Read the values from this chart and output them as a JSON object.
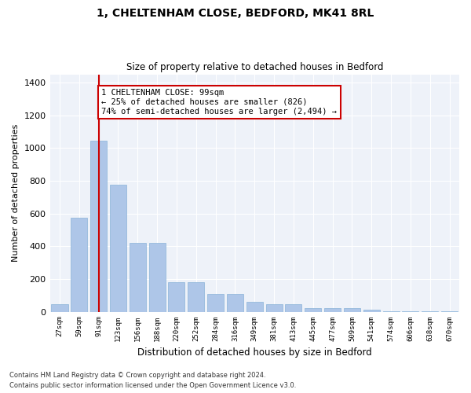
{
  "title1": "1, CHELTENHAM CLOSE, BEDFORD, MK41 8RL",
  "title2": "Size of property relative to detached houses in Bedford",
  "xlabel": "Distribution of detached houses by size in Bedford",
  "ylabel": "Number of detached properties",
  "categories": [
    "27sqm",
    "59sqm",
    "91sqm",
    "123sqm",
    "156sqm",
    "188sqm",
    "220sqm",
    "252sqm",
    "284sqm",
    "316sqm",
    "349sqm",
    "381sqm",
    "413sqm",
    "445sqm",
    "477sqm",
    "509sqm",
    "541sqm",
    "574sqm",
    "606sqm",
    "638sqm",
    "670sqm"
  ],
  "values": [
    45,
    575,
    1045,
    775,
    420,
    420,
    180,
    180,
    110,
    110,
    60,
    45,
    45,
    20,
    20,
    20,
    13,
    5,
    5,
    2,
    2
  ],
  "bar_color": "#aec6e8",
  "bar_edge_color": "#8ab4d8",
  "vline_x_index": 2,
  "vline_color": "#cc0000",
  "annotation_text": "1 CHELTENHAM CLOSE: 99sqm\n← 25% of detached houses are smaller (826)\n74% of semi-detached houses are larger (2,494) →",
  "annotation_box_color": "#ffffff",
  "annotation_box_edge": "#cc0000",
  "ylim": [
    0,
    1450
  ],
  "yticks": [
    0,
    200,
    400,
    600,
    800,
    1000,
    1200,
    1400
  ],
  "bg_color": "#eef2f9",
  "footer1": "Contains HM Land Registry data © Crown copyright and database right 2024.",
  "footer2": "Contains public sector information licensed under the Open Government Licence v3.0."
}
